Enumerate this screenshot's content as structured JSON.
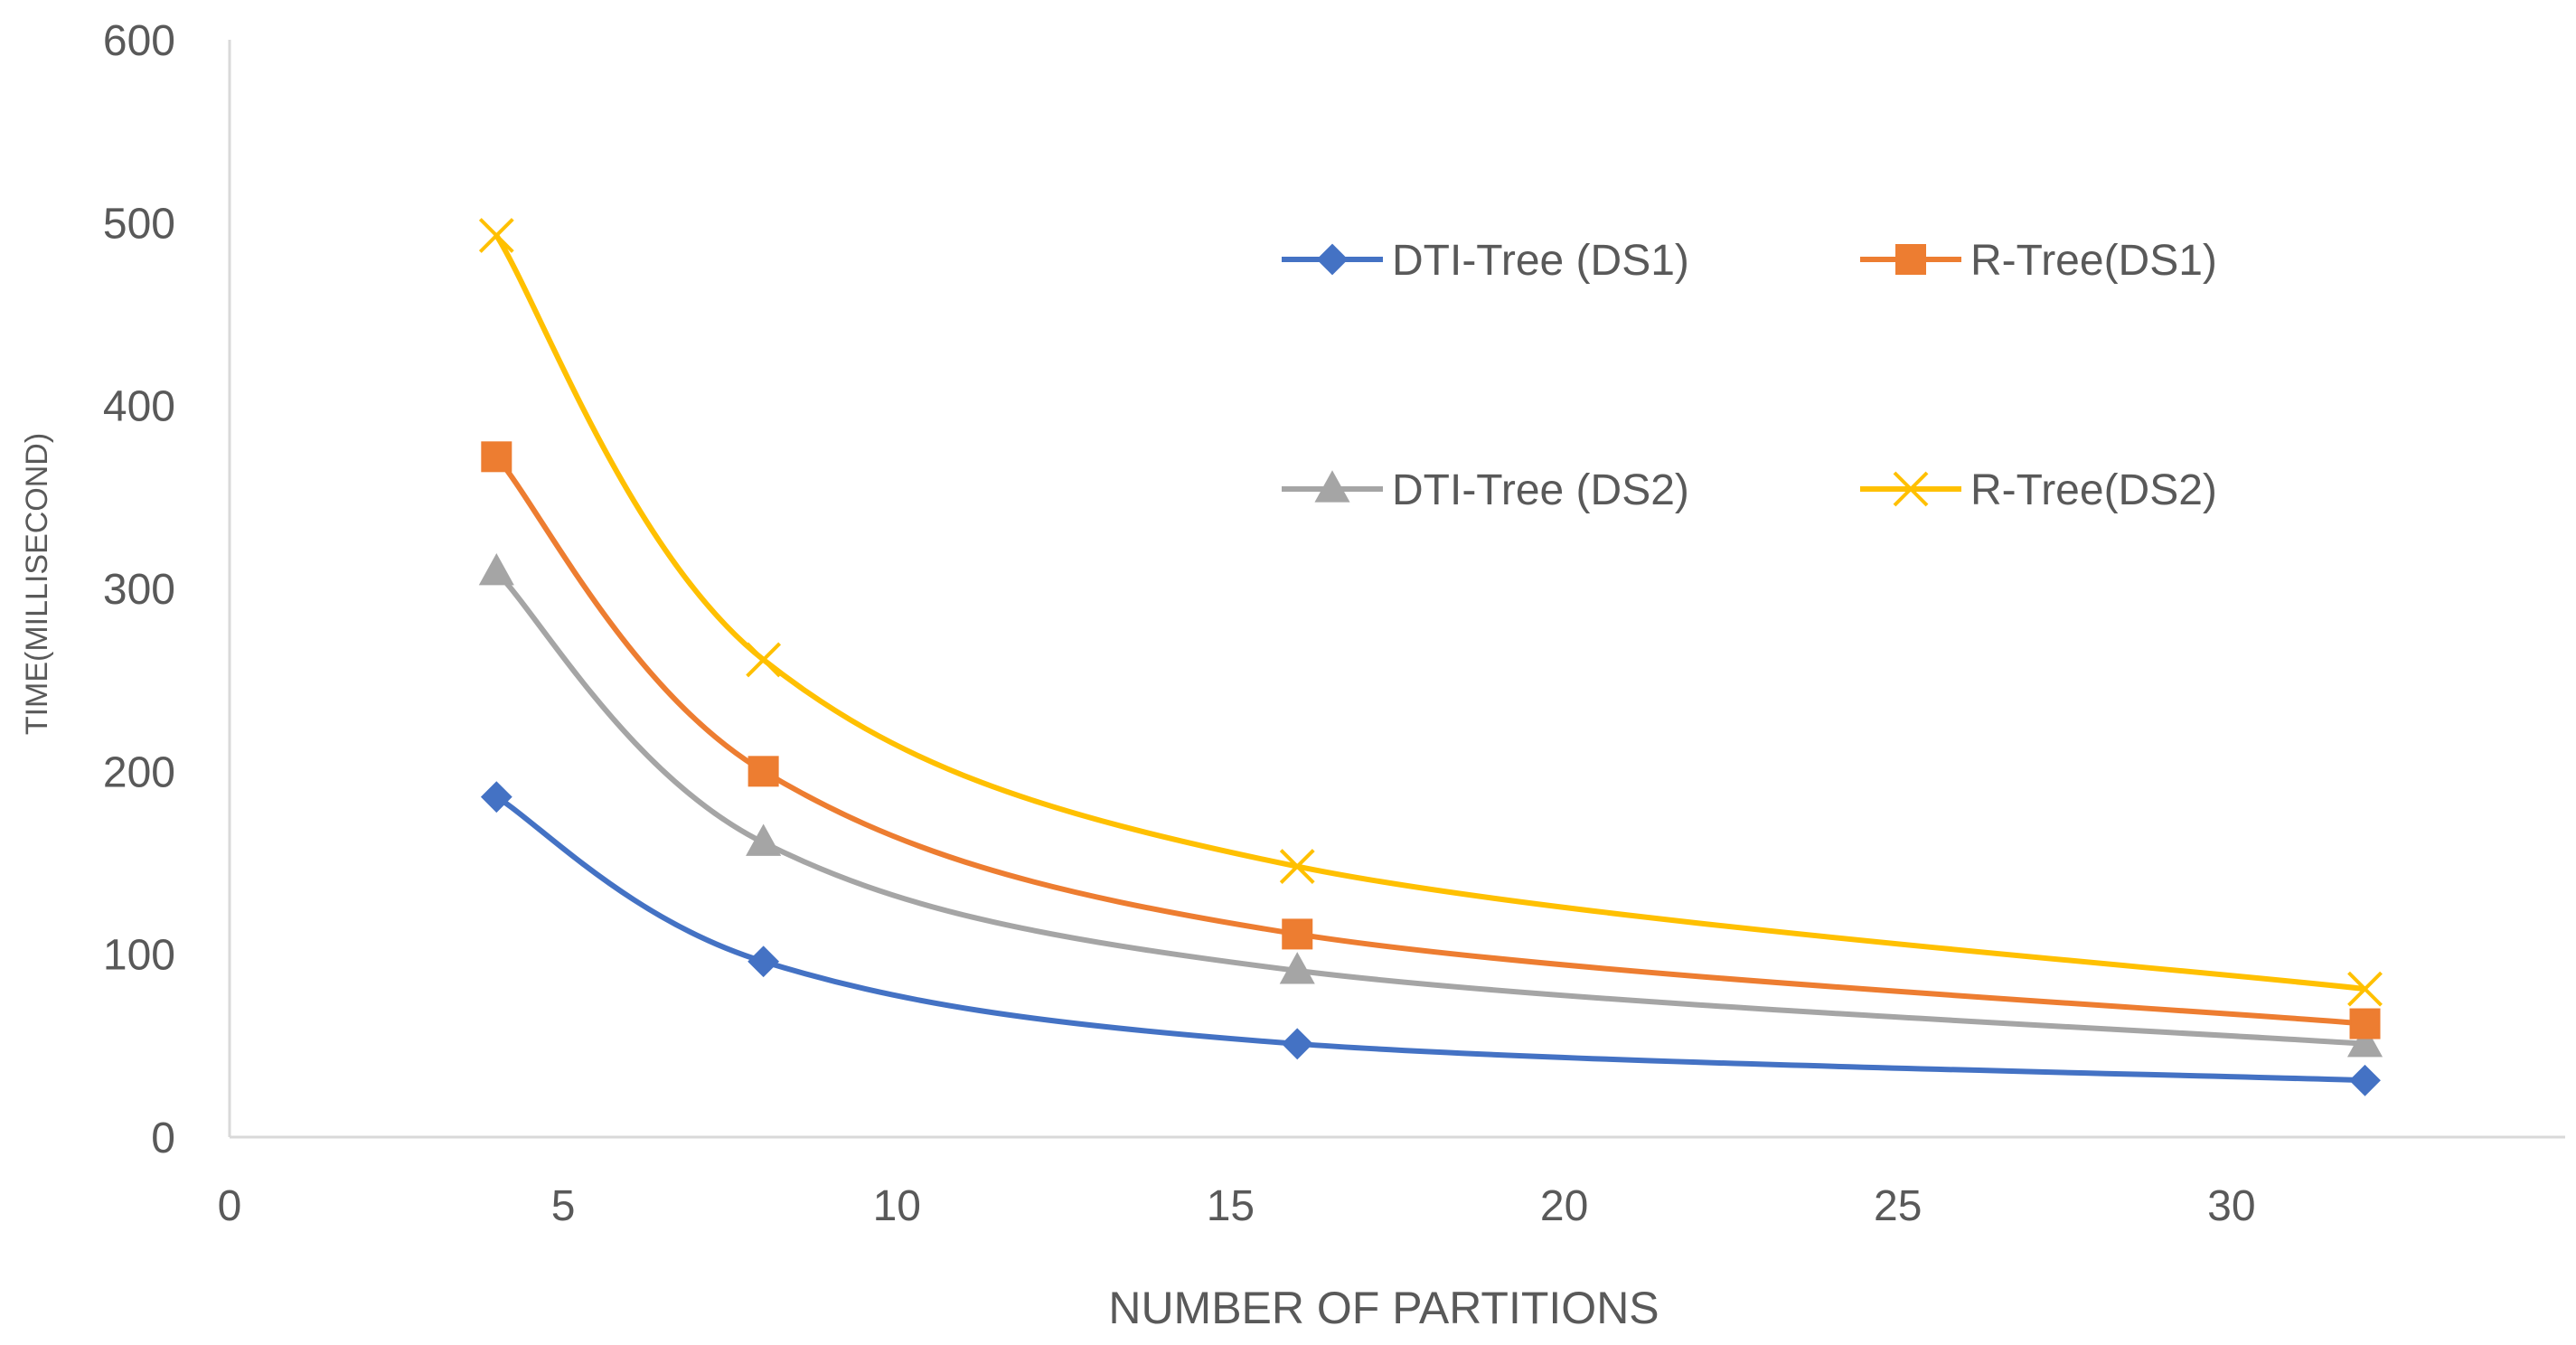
{
  "chart_data": {
    "type": "line",
    "title": "",
    "xlabel": "NUMBER OF PARTITIONS",
    "ylabel": "TIME(MILLISECOND)",
    "xlim": [
      0,
      35
    ],
    "ylim": [
      0,
      600
    ],
    "xticks": [
      0,
      5,
      10,
      15,
      20,
      25,
      30
    ],
    "yticks": [
      0,
      100,
      200,
      300,
      400,
      500,
      600
    ],
    "grid": false,
    "smooth": true,
    "legend_position": "top-right",
    "series": [
      {
        "name": "DTI-Tree (DS1)",
        "color": "#4472C4",
        "marker": "diamond",
        "x": [
          4,
          8,
          16,
          32
        ],
        "values": [
          186,
          96,
          51,
          31
        ]
      },
      {
        "name": "R-Tree(DS1)",
        "color": "#ED7D31",
        "marker": "square",
        "x": [
          4,
          8,
          16,
          32
        ],
        "values": [
          372,
          200,
          111,
          62
        ]
      },
      {
        "name": "DTI-Tree (DS2)",
        "color": "#A5A5A5",
        "marker": "triangle",
        "x": [
          4,
          8,
          16,
          32
        ],
        "values": [
          309,
          161,
          91,
          51
        ]
      },
      {
        "name": "R-Tree(DS2)",
        "color": "#FFC000",
        "marker": "x",
        "x": [
          4,
          8,
          16,
          32
        ],
        "values": [
          493,
          261,
          148,
          81
        ]
      }
    ]
  }
}
